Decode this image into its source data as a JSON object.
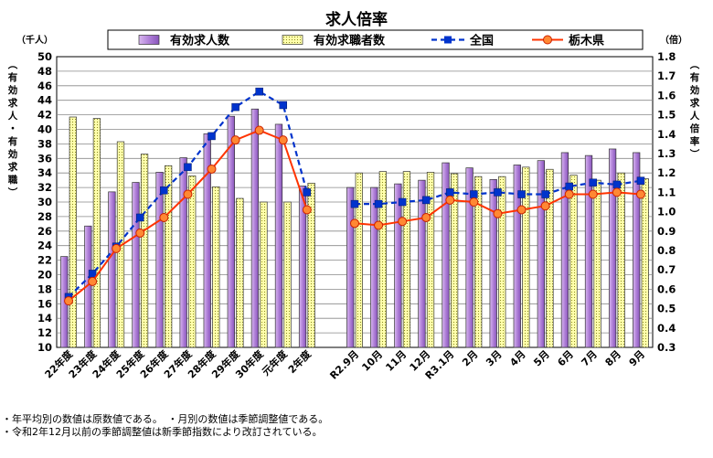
{
  "chart_data": {
    "type": "bar",
    "title": "求人倍率",
    "y_left_unit": "（千人）",
    "y_right_unit": "（倍）",
    "y_left_label": "（有効求人・有効求職）",
    "y_right_label": "（有効求人倍率）",
    "y_left_lim": [
      10,
      50
    ],
    "y_left_step": 2,
    "y_right_lim": [
      0.3,
      1.8
    ],
    "y_right_step": 0.1,
    "grid": true,
    "legend_position": "top",
    "categories": [
      "22年度",
      "23年度",
      "24年度",
      "25年度",
      "26年度",
      "27年度",
      "28年度",
      "29年度",
      "30年度",
      "元年度",
      "2年度",
      "",
      "R2.9月",
      "10月",
      "11月",
      "12月",
      "R3.1月",
      "2月",
      "3月",
      "4月",
      "5月",
      "6月",
      "7月",
      "8月",
      "9月"
    ],
    "series": [
      {
        "name": "有効求人数",
        "kind": "bar",
        "axis": "left",
        "color": "#bb88dd",
        "values": [
          22.5,
          26.7,
          31.4,
          32.7,
          34.1,
          36.1,
          39.4,
          41.8,
          42.8,
          40.7,
          32.2,
          null,
          32.0,
          32.0,
          32.5,
          33.0,
          35.4,
          34.7,
          33.1,
          35.1,
          35.7,
          36.8,
          36.4,
          37.3,
          36.8
        ]
      },
      {
        "name": "有効求職者数",
        "kind": "bar",
        "axis": "left",
        "color": "#ffffaa",
        "values": [
          41.7,
          41.5,
          38.3,
          36.6,
          35.0,
          33.6,
          32.1,
          30.5,
          30.0,
          30.0,
          32.6,
          null,
          34.0,
          34.2,
          34.2,
          34.1,
          33.9,
          33.5,
          33.5,
          34.8,
          34.5,
          33.7,
          33.0,
          34.0,
          33.2
        ]
      },
      {
        "name": "全国",
        "kind": "line",
        "axis": "right",
        "color": "#0033cc",
        "values": [
          0.56,
          0.68,
          0.82,
          0.97,
          1.11,
          1.23,
          1.39,
          1.54,
          1.62,
          1.55,
          1.1,
          null,
          1.04,
          1.04,
          1.05,
          1.06,
          1.1,
          1.09,
          1.1,
          1.09,
          1.09,
          1.13,
          1.15,
          1.14,
          1.16
        ]
      },
      {
        "name": "栃木県",
        "kind": "line",
        "axis": "right",
        "color": "#ff3300",
        "values": [
          0.54,
          0.64,
          0.81,
          0.89,
          0.97,
          1.09,
          1.22,
          1.37,
          1.42,
          1.37,
          1.01,
          null,
          0.94,
          0.93,
          0.95,
          0.97,
          1.06,
          1.05,
          0.99,
          1.01,
          1.03,
          1.09,
          1.09,
          1.1,
          1.09
        ]
      }
    ]
  },
  "notes": [
    "・年平均別の数値は原数値である。　・月別の数値は季節調整値である。",
    "・令和2年12月以前の季節調整値は新季節指数により改訂されている。"
  ]
}
